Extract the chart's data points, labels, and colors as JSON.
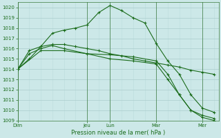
{
  "title": "Pression niveau de la mer( hPa )",
  "background_color": "#cce8e8",
  "grid_color_major": "#aacccc",
  "grid_color_minor": "#bbdddd",
  "line_color": "#1a6b1a",
  "ylim": [
    1009,
    1020.5
  ],
  "yticks": [
    1009,
    1010,
    1011,
    1012,
    1013,
    1014,
    1015,
    1016,
    1017,
    1018,
    1019,
    1020
  ],
  "day_labels": [
    "Dim",
    "Jeu",
    "Lun",
    "Mar",
    "Mer"
  ],
  "day_positions": [
    0,
    3.0,
    4.0,
    6.0,
    8.0
  ],
  "xlim": [
    0,
    8.7
  ],
  "series": [
    {
      "x": [
        0,
        0.5,
        1.0,
        1.5,
        2.0,
        2.5,
        3.0,
        3.5,
        4.0,
        4.5,
        5.0,
        5.5,
        6.0,
        6.5,
        7.0,
        7.5,
        8.0,
        8.5
      ],
      "y": [
        1014,
        1015,
        1016.2,
        1017.5,
        1017.8,
        1018.0,
        1018.3,
        1019.5,
        1020.2,
        1019.7,
        1019.0,
        1018.5,
        1016.5,
        1014.8,
        1013.5,
        1011.5,
        1010.2,
        1009.8
      ]
    },
    {
      "x": [
        0,
        0.5,
        1.0,
        1.5,
        2.0,
        2.5,
        3.0,
        3.5,
        4.0,
        4.5,
        5.0,
        5.5,
        6.0,
        6.5,
        7.0,
        7.5,
        8.0,
        8.5
      ],
      "y": [
        1014,
        1015.8,
        1016.2,
        1016.4,
        1016.4,
        1016.2,
        1016.0,
        1015.8,
        1015.5,
        1015.3,
        1015.0,
        1014.8,
        1014.6,
        1014.4,
        1014.2,
        1013.9,
        1013.7,
        1013.5
      ]
    },
    {
      "x": [
        0,
        1.0,
        2.0,
        3.0,
        4.0,
        5.0,
        6.0,
        6.5,
        7.0,
        7.5,
        8.0,
        8.5
      ],
      "y": [
        1014,
        1015.8,
        1015.8,
        1015.5,
        1015.4,
        1015.2,
        1014.8,
        1013.5,
        1011.5,
        1010.0,
        1009.5,
        1009.2
      ]
    },
    {
      "x": [
        0,
        0.5,
        1.0,
        1.5,
        2.0,
        3.0,
        4.0,
        5.0,
        6.0,
        6.5,
        7.0,
        7.5,
        8.0,
        8.5
      ],
      "y": [
        1014,
        1015.5,
        1016.0,
        1016.3,
        1016.0,
        1015.5,
        1015.0,
        1014.8,
        1014.5,
        1013.0,
        1011.5,
        1010.0,
        1009.3,
        1009.0
      ]
    }
  ]
}
